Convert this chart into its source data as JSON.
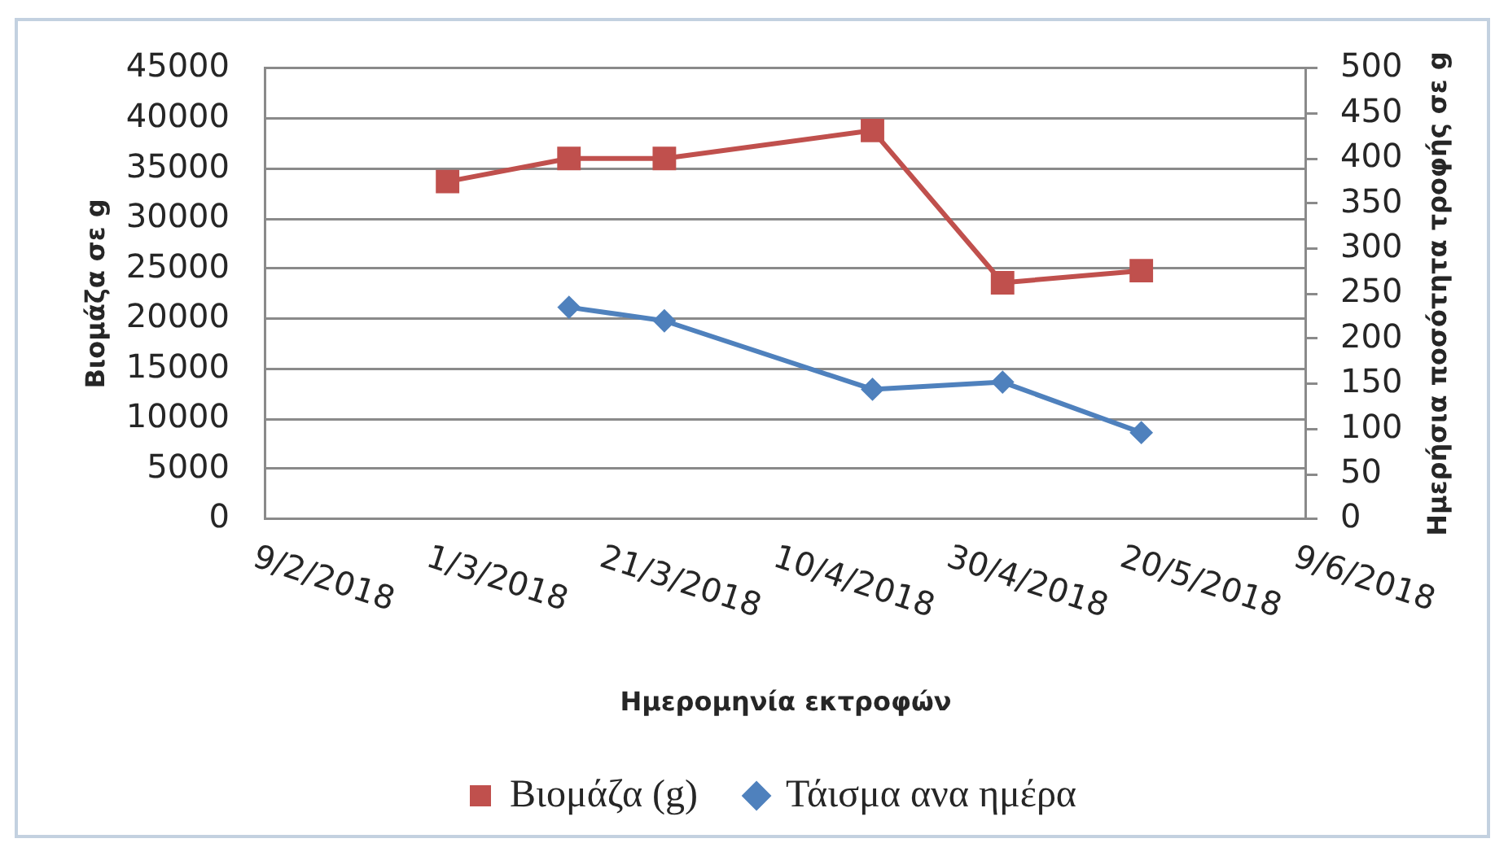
{
  "chart_data": {
    "type": "line",
    "xlabel": "Ημερομηνία εκτροφών",
    "ylabel": "Βιομάζα σε g",
    "y2label": "Ημερήσια ποσότητα τροφής σε g",
    "xlim": [
      "2018-02-09",
      "2018-06-09"
    ],
    "xticks": [
      {
        "value": "2018-02-09",
        "label": "9/2/2018"
      },
      {
        "value": "2018-03-01",
        "label": "1/3/2018"
      },
      {
        "value": "2018-03-21",
        "label": "21/3/2018"
      },
      {
        "value": "2018-04-10",
        "label": "10/4/2018"
      },
      {
        "value": "2018-04-30",
        "label": "30/4/2018"
      },
      {
        "value": "2018-05-20",
        "label": "20/5/2018"
      },
      {
        "value": "2018-06-09",
        "label": "9/6/2018"
      }
    ],
    "ylim": [
      0,
      45000
    ],
    "yticks": [
      0,
      5000,
      10000,
      15000,
      20000,
      25000,
      30000,
      35000,
      40000,
      45000
    ],
    "y2lim": [
      0,
      500
    ],
    "y2ticks": [
      0,
      50,
      100,
      150,
      200,
      250,
      300,
      350,
      400,
      450,
      500
    ],
    "grid": "y",
    "legend": "bottom",
    "line_style": "solid",
    "series": [
      {
        "name": "Βιομάζα (g)",
        "color": "#c0504d",
        "marker": "square",
        "x": [
          "2018-03-02",
          "2018-03-16",
          "2018-03-27",
          "2018-04-20",
          "2018-05-05",
          "2018-05-21"
        ],
        "values": [
          33700,
          36000,
          36000,
          38800,
          23600,
          24800
        ]
      },
      {
        "name": "Τάισμα ανα ημέρα",
        "color": "#4f81bd",
        "marker": "diamond",
        "axis": "y2",
        "x": [
          "2018-03-16",
          "2018-03-27",
          "2018-04-20",
          "2018-05-05",
          "2018-05-21"
        ],
        "values": [
          235,
          220,
          144,
          152,
          96
        ]
      }
    ]
  }
}
